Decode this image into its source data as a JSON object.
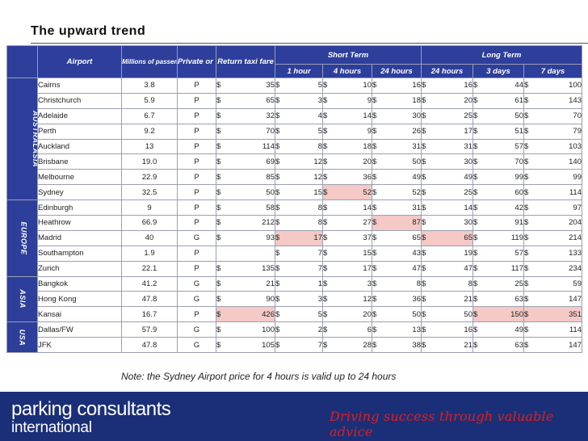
{
  "title": "The upward trend",
  "note": "Note: the Sydney Airport price for 4 hours is valid up to 24 hours",
  "footer": {
    "brand_line1": "parking consultants",
    "brand_line2": "international",
    "tagline": "Driving success through valuable advice"
  },
  "colors": {
    "header_bg": "#2d3e9b",
    "highlight": "#f4c9c6",
    "footer_bg": "#1a2f78",
    "tagline": "#e01e1e"
  },
  "currency_symbol": "$",
  "headers": {
    "airport": "Airport",
    "passengers": "Millions of passengers",
    "ownership": "Private or Govt",
    "taxi": "Return taxi fare",
    "short_term": "Short Term",
    "long_term": "Long Term",
    "st_cols": [
      "1 hour",
      "4 hours",
      "24 hours"
    ],
    "lt_cols": [
      "24 hours",
      "3 days",
      "7 days"
    ]
  },
  "regions": [
    {
      "name": "AUSTRALASIA",
      "rows": [
        {
          "airport": "Cairns",
          "passengers": "3.8",
          "ownership": "P",
          "taxi": "35",
          "h1": "5",
          "h4": "10",
          "h24": "16",
          "lt24": "16",
          "d3": "44",
          "d7": "100",
          "hl": []
        },
        {
          "airport": "Christchurch",
          "passengers": "5.9",
          "ownership": "P",
          "taxi": "65",
          "h1": "3",
          "h4": "9",
          "h24": "18",
          "lt24": "20",
          "d3": "61",
          "d7": "143",
          "hl": []
        },
        {
          "airport": "Adelaide",
          "passengers": "6.7",
          "ownership": "P",
          "taxi": "32",
          "h1": "4",
          "h4": "14",
          "h24": "30",
          "lt24": "25",
          "d3": "50",
          "d7": "70",
          "hl": []
        },
        {
          "airport": "Perth",
          "passengers": "9.2",
          "ownership": "P",
          "taxi": "70",
          "h1": "5",
          "h4": "9",
          "h24": "26",
          "lt24": "17",
          "d3": "51",
          "d7": "79",
          "hl": []
        },
        {
          "airport": "Auckland",
          "passengers": "13",
          "ownership": "P",
          "taxi": "114",
          "h1": "8",
          "h4": "18",
          "h24": "31",
          "lt24": "31",
          "d3": "57",
          "d7": "103",
          "hl": []
        },
        {
          "airport": "Brisbane",
          "passengers": "19.0",
          "ownership": "P",
          "taxi": "69",
          "h1": "12",
          "h4": "20",
          "h24": "50",
          "lt24": "30",
          "d3": "70",
          "d7": "140",
          "hl": []
        },
        {
          "airport": "Melbourne",
          "passengers": "22.9",
          "ownership": "P",
          "taxi": "85",
          "h1": "12",
          "h4": "36",
          "h24": "49",
          "lt24": "49",
          "d3": "99",
          "d7": "99",
          "hl": []
        },
        {
          "airport": "Sydney",
          "passengers": "32.5",
          "ownership": "P",
          "taxi": "50",
          "h1": "15",
          "h4": "52",
          "h24": "52",
          "lt24": "25",
          "d3": "60",
          "d7": "114",
          "hl": [
            "h4"
          ]
        }
      ]
    },
    {
      "name": "EUROPE",
      "rows": [
        {
          "airport": "Edinburgh",
          "passengers": "9",
          "ownership": "P",
          "taxi": "58",
          "h1": "8",
          "h4": "14",
          "h24": "31",
          "lt24": "14",
          "d3": "42",
          "d7": "97",
          "hl": []
        },
        {
          "airport": "Heathrow",
          "passengers": "66.9",
          "ownership": "P",
          "taxi": "212",
          "h1": "8",
          "h4": "27",
          "h24": "87",
          "lt24": "30",
          "d3": "91",
          "d7": "204",
          "hl": [
            "h24"
          ]
        },
        {
          "airport": "Madrid",
          "passengers": "40",
          "ownership": "G",
          "taxi": "93",
          "h1": "17",
          "h4": "37",
          "h24": "65",
          "lt24": "65",
          "d3": "119",
          "d7": "214",
          "hl": [
            "h1",
            "lt24"
          ]
        },
        {
          "airport": "Southampton",
          "passengers": "1.9",
          "ownership": "P",
          "taxi": "",
          "h1": "7",
          "h4": "15",
          "h24": "43",
          "lt24": "19",
          "d3": "57",
          "d7": "133",
          "hl": []
        },
        {
          "airport": "Zurich",
          "passengers": "22.1",
          "ownership": "P",
          "taxi": "135",
          "h1": "7",
          "h4": "17",
          "h24": "47",
          "lt24": "47",
          "d3": "117",
          "d7": "234",
          "hl": []
        }
      ]
    },
    {
      "name": "ASIA",
      "rows": [
        {
          "airport": "Bangkok",
          "passengers": "41.2",
          "ownership": "G",
          "taxi": "21",
          "h1": "1",
          "h4": "3",
          "h24": "8",
          "lt24": "8",
          "d3": "25",
          "d7": "59",
          "hl": []
        },
        {
          "airport": "Hong Kong",
          "passengers": "47.8",
          "ownership": "G",
          "taxi": "90",
          "h1": "3",
          "h4": "12",
          "h24": "36",
          "lt24": "21",
          "d3": "63",
          "d7": "147",
          "hl": []
        },
        {
          "airport": "Kansai",
          "passengers": "16.7",
          "ownership": "P",
          "taxi": "426",
          "h1": "5",
          "h4": "20",
          "h24": "50",
          "lt24": "50",
          "d3": "150",
          "d7": "351",
          "hl": [
            "taxi",
            "d3",
            "d7"
          ]
        }
      ]
    },
    {
      "name": "USA",
      "rows": [
        {
          "airport": "Dallas/FW",
          "passengers": "57.9",
          "ownership": "G",
          "taxi": "100",
          "h1": "2",
          "h4": "6",
          "h24": "13",
          "lt24": "16",
          "d3": "49",
          "d7": "114",
          "hl": []
        },
        {
          "airport": "JFK",
          "passengers": "47.8",
          "ownership": "G",
          "taxi": "105",
          "h1": "7",
          "h4": "28",
          "h24": "38",
          "lt24": "21",
          "d3": "63",
          "d7": "147",
          "hl": []
        }
      ]
    }
  ]
}
